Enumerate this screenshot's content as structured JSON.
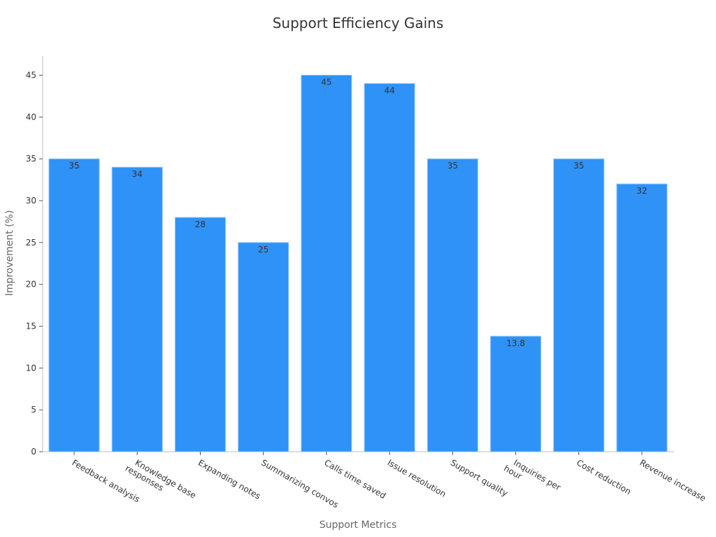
{
  "chart_data": {
    "type": "bar",
    "title": "Support Efficiency Gains",
    "xlabel": "Support Metrics",
    "ylabel": "Improvement (%)",
    "categories": [
      [
        "Feedback analysis"
      ],
      [
        "Knowledge base",
        "responses"
      ],
      [
        "Expanding notes"
      ],
      [
        "Summarizing convos"
      ],
      [
        "Calls time saved"
      ],
      [
        "Issue resolution"
      ],
      [
        "Support quality"
      ],
      [
        "Inquiries per",
        "hour"
      ],
      [
        "Cost reduction"
      ],
      [
        "Revenue increase"
      ]
    ],
    "values": [
      35,
      34,
      28,
      25,
      45,
      44,
      35,
      13.8,
      35,
      32
    ],
    "data_labels": [
      "35",
      "34",
      "28",
      "25",
      "45",
      "44",
      "35",
      "13.8",
      "35",
      "32"
    ],
    "ylim": [
      0,
      47.3
    ],
    "yticks": [
      0,
      5,
      10,
      15,
      20,
      25,
      30,
      35,
      40,
      45
    ],
    "grid": false,
    "legend": "none",
    "colors": {
      "bar": "#2f92f7"
    }
  }
}
